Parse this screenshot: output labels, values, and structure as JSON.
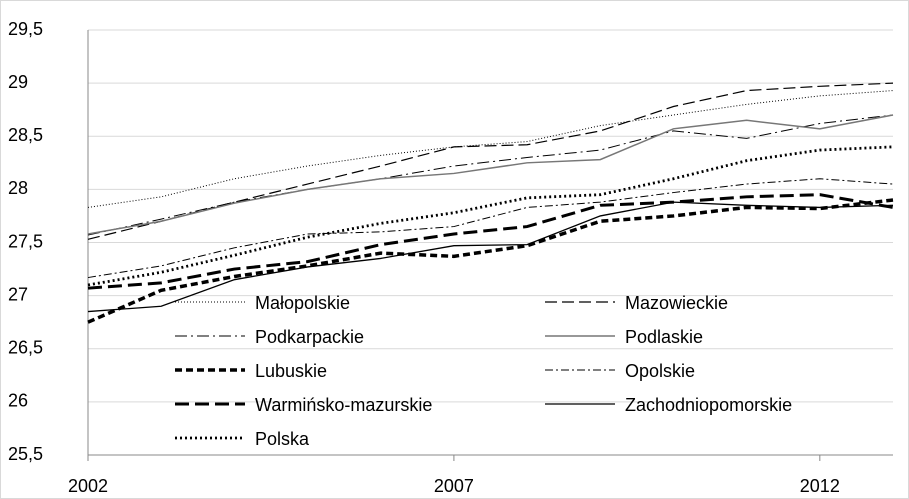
{
  "chart_data": {
    "type": "line",
    "x": [
      2002,
      2003,
      2004,
      2005,
      2006,
      2007,
      2008,
      2009,
      2010,
      2011,
      2012,
      2013
    ],
    "xlim": [
      2002,
      2013
    ],
    "xticks": [
      2002,
      2007,
      2012
    ],
    "ylim": [
      25.5,
      29.5
    ],
    "yticks": [
      {
        "value": 25.5,
        "label": "25,5"
      },
      26,
      {
        "value": 26.5,
        "label": "26,5"
      },
      27,
      {
        "value": 27.5,
        "label": "27,5"
      },
      28,
      {
        "value": 28.5,
        "label": "28,5"
      },
      29,
      {
        "value": 29.5,
        "label": "29,5"
      }
    ],
    "grid": true,
    "legend": "inside-bottom",
    "series": [
      {
        "name": "Małopolskie",
        "color": "#000000",
        "dash": "1,2",
        "width": 1,
        "values": [
          27.83,
          27.93,
          28.1,
          28.22,
          28.32,
          28.4,
          28.45,
          28.6,
          28.7,
          28.8,
          28.88,
          28.93
        ]
      },
      {
        "name": "Mazowieckie",
        "color": "#000000",
        "dash": "12,5",
        "width": 1.2,
        "values": [
          27.53,
          27.7,
          27.88,
          28.05,
          28.22,
          28.4,
          28.42,
          28.55,
          28.78,
          28.93,
          28.97,
          29.0
        ]
      },
      {
        "name": "Podkarpackie",
        "color": "#000000",
        "dash": "12,4,2,4",
        "width": 1,
        "values": [
          27.57,
          27.72,
          27.88,
          28.0,
          28.1,
          28.22,
          28.3,
          28.37,
          28.55,
          28.48,
          28.62,
          28.7
        ]
      },
      {
        "name": "Podlaskie",
        "color": "#777777",
        "dash": "none",
        "width": 1.5,
        "values": [
          27.58,
          27.7,
          27.87,
          28.0,
          28.1,
          28.15,
          28.25,
          28.28,
          28.57,
          28.65,
          28.57,
          28.7
        ]
      },
      {
        "name": "Lubuskie",
        "color": "#000000",
        "dash": "7,4",
        "width": 3.5,
        "values": [
          26.75,
          27.05,
          27.18,
          27.28,
          27.4,
          27.37,
          27.47,
          27.7,
          27.75,
          27.83,
          27.82,
          27.9
        ]
      },
      {
        "name": "Opolskie",
        "color": "#000000",
        "dash": "8,3,2,3",
        "width": 1,
        "values": [
          27.17,
          27.28,
          27.45,
          27.58,
          27.6,
          27.65,
          27.83,
          27.88,
          27.97,
          28.05,
          28.1,
          28.05
        ]
      },
      {
        "name": "Warmińsko-mazurskie",
        "color": "#000000",
        "dash": "14,6",
        "width": 3,
        "values": [
          27.07,
          27.12,
          27.25,
          27.32,
          27.48,
          27.58,
          27.65,
          27.85,
          27.88,
          27.93,
          27.95,
          27.83
        ]
      },
      {
        "name": "Zachodniopomorskie",
        "color": "#000000",
        "dash": "none",
        "width": 1.3,
        "values": [
          26.85,
          26.9,
          27.15,
          27.27,
          27.35,
          27.47,
          27.48,
          27.75,
          27.88,
          27.85,
          27.83,
          27.85
        ]
      },
      {
        "name": "Polska",
        "color": "#000000",
        "dash": "2,3",
        "width": 2.8,
        "values": [
          27.1,
          27.22,
          27.38,
          27.55,
          27.68,
          27.78,
          27.92,
          27.95,
          28.1,
          28.27,
          28.37,
          28.4
        ]
      }
    ]
  }
}
